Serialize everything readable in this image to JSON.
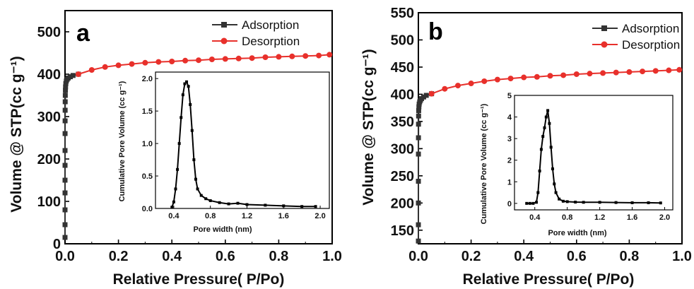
{
  "chart_data": [
    {
      "type": "line",
      "panel": "a",
      "xlabel": "Relative Pressure( P/Po)",
      "ylabel": "Volume @ STP(cc g⁻¹)",
      "xlim": [
        0,
        1.0
      ],
      "ylim": [
        0,
        550
      ],
      "xticks": [
        "0.0",
        "0.2",
        "0.4",
        "0.6",
        "0.8",
        "1.0"
      ],
      "yticks": [
        "0",
        "100",
        "200",
        "300",
        "400",
        "500"
      ],
      "legend_position": "top-right",
      "series": [
        {
          "name": "Adsorption",
          "color": "#333333",
          "marker": "square",
          "x": [
            1e-05,
            2e-05,
            3e-05,
            4e-05,
            5e-05,
            7e-05,
            0.0001,
            0.0002,
            0.0003,
            0.0005,
            0.0007,
            0.001,
            0.0015,
            0.002,
            0.003,
            0.005,
            0.008,
            0.012,
            0.02,
            0.03,
            0.05
          ],
          "y": [
            15,
            45,
            80,
            120,
            150,
            185,
            220,
            260,
            290,
            315,
            335,
            350,
            362,
            370,
            378,
            384,
            388,
            391,
            394,
            397,
            400
          ]
        },
        {
          "name": "Desorption",
          "color": "#e8302b",
          "marker": "circle",
          "x": [
            0.05,
            0.1,
            0.15,
            0.2,
            0.25,
            0.3,
            0.35,
            0.4,
            0.45,
            0.5,
            0.55,
            0.6,
            0.65,
            0.7,
            0.75,
            0.8,
            0.85,
            0.9,
            0.95,
            0.99
          ],
          "y": [
            400,
            410,
            417,
            421,
            424,
            427,
            429,
            430,
            432,
            433,
            435,
            436,
            437,
            438,
            440,
            441,
            442,
            443,
            444,
            446
          ]
        }
      ],
      "inset": {
        "xlabel": "Pore width (nm)",
        "ylabel": "Cumulative Pore Volume (cc g⁻¹)",
        "xlim": [
          0.2,
          2.1
        ],
        "ylim": [
          0,
          2.1
        ],
        "xticks": [
          "0.4",
          "0.8",
          "1.2",
          "1.6",
          "2.0"
        ],
        "yticks": [
          "0.0",
          "0.5",
          "1.0",
          "1.5",
          "2.0"
        ],
        "color": "#000000",
        "x": [
          0.38,
          0.4,
          0.42,
          0.44,
          0.46,
          0.48,
          0.5,
          0.52,
          0.54,
          0.56,
          0.58,
          0.6,
          0.62,
          0.64,
          0.66,
          0.7,
          0.75,
          0.8,
          0.9,
          1.0,
          1.1,
          1.2,
          1.4,
          1.6,
          1.8,
          1.95
        ],
        "y": [
          0.02,
          0.1,
          0.3,
          0.6,
          1.0,
          1.4,
          1.75,
          1.92,
          1.95,
          1.88,
          1.6,
          1.2,
          0.75,
          0.45,
          0.3,
          0.2,
          0.15,
          0.12,
          0.09,
          0.07,
          0.08,
          0.06,
          0.05,
          0.04,
          0.03,
          0.03
        ]
      }
    },
    {
      "type": "line",
      "panel": "b",
      "xlabel": "Relative Pressure( P/Po)",
      "ylabel": "Volume @ STP(cc g⁻¹)",
      "xlim": [
        0,
        1.0
      ],
      "ylim": [
        125,
        550
      ],
      "xticks": [
        "0.0",
        "0.2",
        "0.4",
        "0.6",
        "0.8",
        "1.0"
      ],
      "yticks": [
        "150",
        "200",
        "250",
        "300",
        "350",
        "400",
        "450",
        "500",
        "550"
      ],
      "legend_position": "top-right",
      "series": [
        {
          "name": "Adsorption",
          "color": "#333333",
          "marker": "square",
          "x": [
            2e-05,
            4e-05,
            7e-05,
            0.0001,
            0.0002,
            0.0003,
            0.0005,
            0.0008,
            0.0012,
            0.002,
            0.003,
            0.005,
            0.008,
            0.012,
            0.02,
            0.03,
            0.05
          ],
          "y": [
            130,
            160,
            200,
            240,
            290,
            320,
            345,
            360,
            370,
            377,
            382,
            386,
            389,
            392,
            395,
            398,
            401
          ]
        },
        {
          "name": "Desorption",
          "color": "#e8302b",
          "marker": "circle",
          "x": [
            0.05,
            0.1,
            0.15,
            0.2,
            0.25,
            0.3,
            0.35,
            0.4,
            0.45,
            0.5,
            0.55,
            0.6,
            0.65,
            0.7,
            0.75,
            0.8,
            0.85,
            0.9,
            0.95,
            0.99
          ],
          "y": [
            401,
            410,
            416,
            420,
            424,
            427,
            429,
            431,
            432,
            434,
            435,
            437,
            438,
            439,
            440,
            441,
            442,
            443,
            444,
            445
          ]
        }
      ],
      "inset": {
        "xlabel": "Pore width (nm)",
        "ylabel": "Cumulative Pore Volume (cc g⁻¹)",
        "xlim": [
          0.15,
          2.1
        ],
        "ylim": [
          -0.3,
          5
        ],
        "xticks": [
          "0.4",
          "0.8",
          "1.2",
          "1.6",
          "2.0"
        ],
        "yticks": [
          "0",
          "1",
          "2",
          "3",
          "4",
          "5"
        ],
        "color": "#000000",
        "x": [
          0.3,
          0.34,
          0.38,
          0.42,
          0.44,
          0.46,
          0.48,
          0.5,
          0.52,
          0.54,
          0.56,
          0.58,
          0.6,
          0.62,
          0.64,
          0.66,
          0.7,
          0.75,
          0.8,
          0.9,
          1.0,
          1.2,
          1.4,
          1.6,
          1.8,
          1.95
        ],
        "y": [
          0.0,
          0.0,
          0.0,
          0.05,
          0.5,
          1.5,
          2.5,
          3.1,
          3.5,
          4.0,
          4.3,
          3.7,
          2.6,
          1.6,
          0.9,
          0.5,
          0.2,
          0.1,
          0.08,
          0.06,
          0.05,
          0.05,
          0.04,
          0.03,
          0.03,
          0.02
        ]
      }
    }
  ]
}
